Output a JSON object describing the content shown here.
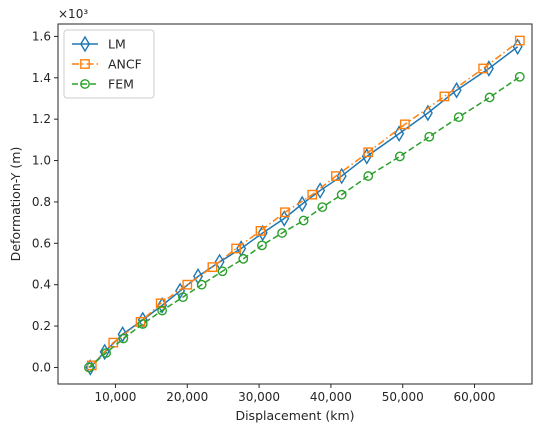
{
  "chart_data": {
    "type": "line",
    "xlabel": "Displacement (km)",
    "ylabel": "Deformation-Y (m)",
    "y_offset_text": "×10³",
    "y_scale_exponent": 3,
    "xlim": [
      2000,
      68000
    ],
    "ylim": [
      -0.08,
      1.66
    ],
    "x_ticks": [
      10000,
      20000,
      30000,
      40000,
      50000,
      60000
    ],
    "x_tick_labels": [
      "10,000",
      "20,000",
      "30,000",
      "40,000",
      "50,000",
      "60,000"
    ],
    "y_ticks": [
      0.0,
      0.2,
      0.4,
      0.6,
      0.8,
      1.0,
      1.2,
      1.4,
      1.6
    ],
    "y_tick_labels": [
      "0.0",
      "0.2",
      "0.4",
      "0.6",
      "0.8",
      "1.0",
      "1.2",
      "1.4",
      "1.6"
    ],
    "legend_position": "top-left",
    "grid": false,
    "series": [
      {
        "name": "LM",
        "color": "#1f77b4",
        "marker": "diamond",
        "linestyle": "solid",
        "x": [
          6500,
          8500,
          11000,
          13800,
          16500,
          19000,
          21500,
          24500,
          27500,
          30500,
          33500,
          36000,
          38500,
          41500,
          45000,
          49500,
          53500,
          57500,
          62000,
          66000
        ],
        "y": [
          0.0,
          0.075,
          0.16,
          0.23,
          0.3,
          0.37,
          0.44,
          0.51,
          0.575,
          0.65,
          0.72,
          0.79,
          0.855,
          0.925,
          1.02,
          1.13,
          1.23,
          1.34,
          1.445,
          1.55
        ]
      },
      {
        "name": "ANCF",
        "color": "#ff7f0e",
        "marker": "square",
        "linestyle": "dashdot",
        "x": [
          6700,
          9700,
          13500,
          16300,
          20000,
          23500,
          26800,
          30200,
          33600,
          37400,
          40700,
          45200,
          50300,
          55800,
          61200,
          66300
        ],
        "y": [
          0.01,
          0.12,
          0.22,
          0.31,
          0.4,
          0.485,
          0.575,
          0.66,
          0.75,
          0.835,
          0.925,
          1.04,
          1.175,
          1.31,
          1.445,
          1.58
        ]
      },
      {
        "name": "FEM",
        "color": "#2ca02c",
        "marker": "circle",
        "linestyle": "dashed",
        "x": [
          6300,
          8700,
          11100,
          13800,
          16500,
          19400,
          22000,
          24900,
          27800,
          30400,
          33200,
          36200,
          38800,
          41500,
          45200,
          49600,
          53700,
          57800,
          62100,
          66300
        ],
        "y": [
          0.0,
          0.07,
          0.14,
          0.21,
          0.275,
          0.34,
          0.4,
          0.465,
          0.525,
          0.59,
          0.65,
          0.71,
          0.775,
          0.835,
          0.925,
          1.02,
          1.115,
          1.21,
          1.305,
          1.405
        ]
      }
    ]
  }
}
